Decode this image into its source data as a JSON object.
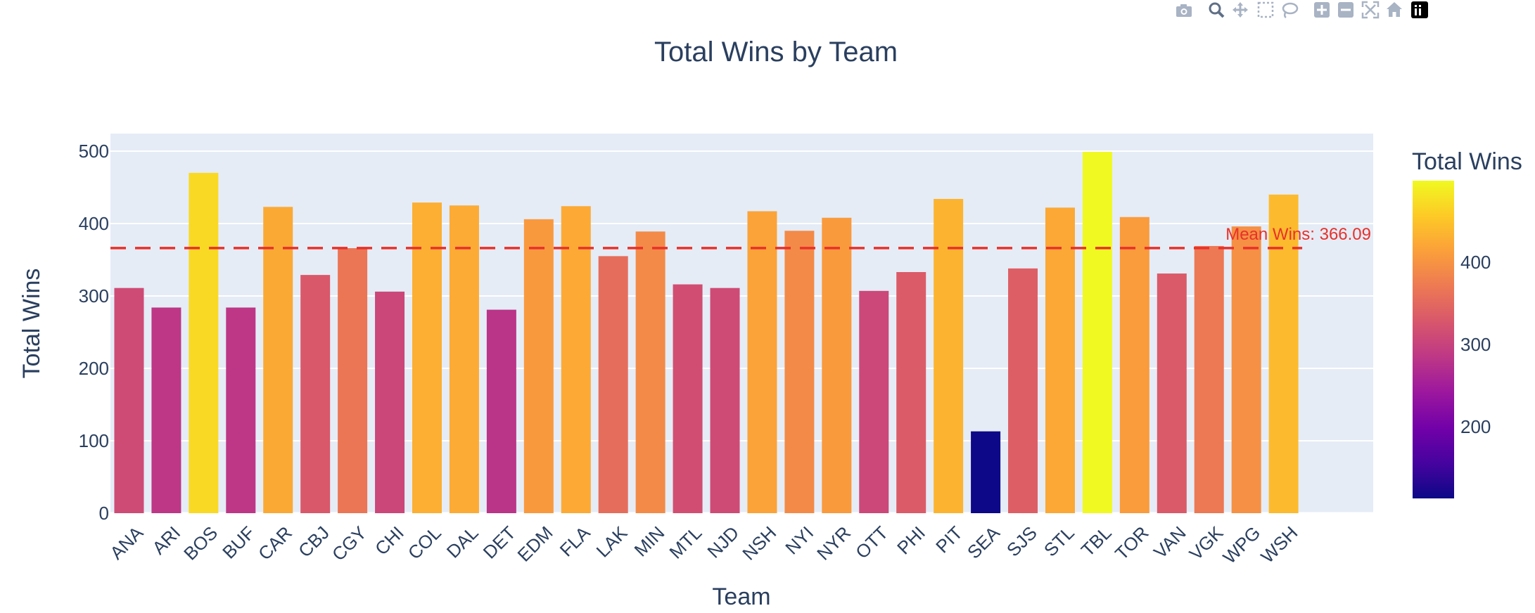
{
  "chart_data": {
    "type": "bar",
    "title": "Total Wins by Team",
    "xlabel": "Team",
    "ylabel": "Total Wins",
    "categories": [
      "ANA",
      "ARI",
      "BOS",
      "BUF",
      "CAR",
      "CBJ",
      "CGY",
      "CHI",
      "COL",
      "DAL",
      "DET",
      "EDM",
      "FLA",
      "LAK",
      "MIN",
      "MTL",
      "NJD",
      "NSH",
      "NYI",
      "NYR",
      "OTT",
      "PHI",
      "PIT",
      "SEA",
      "SJS",
      "STL",
      "TBL",
      "TOR",
      "VAN",
      "VGK",
      "WPG",
      "WSH"
    ],
    "values": [
      311,
      284,
      470,
      284,
      423,
      329,
      366,
      306,
      429,
      425,
      281,
      406,
      424,
      355,
      389,
      316,
      311,
      417,
      390,
      408,
      307,
      333,
      434,
      113,
      338,
      422,
      499,
      409,
      331,
      369,
      396,
      440
    ],
    "ylim": [
      0,
      525
    ],
    "yticks": [
      0,
      100,
      200,
      300,
      400,
      500
    ],
    "mean_line": {
      "value": 366.09,
      "label": "Mean Wins: 366.09",
      "color": "#e8312a"
    },
    "colorbar": {
      "title": "Total Wins",
      "ticks": [
        200,
        300,
        400
      ],
      "min": 113,
      "max": 499
    },
    "colorscale": "plasma",
    "plot_background": "#e5ecf6",
    "grid": true
  },
  "modebar": {
    "icons": [
      "camera-icon",
      "zoom-icon",
      "pan-icon",
      "box-select-icon",
      "lasso-icon",
      "zoom-in-icon",
      "zoom-out-icon",
      "autoscale-icon",
      "home-icon",
      "plotly-logo-icon"
    ]
  }
}
